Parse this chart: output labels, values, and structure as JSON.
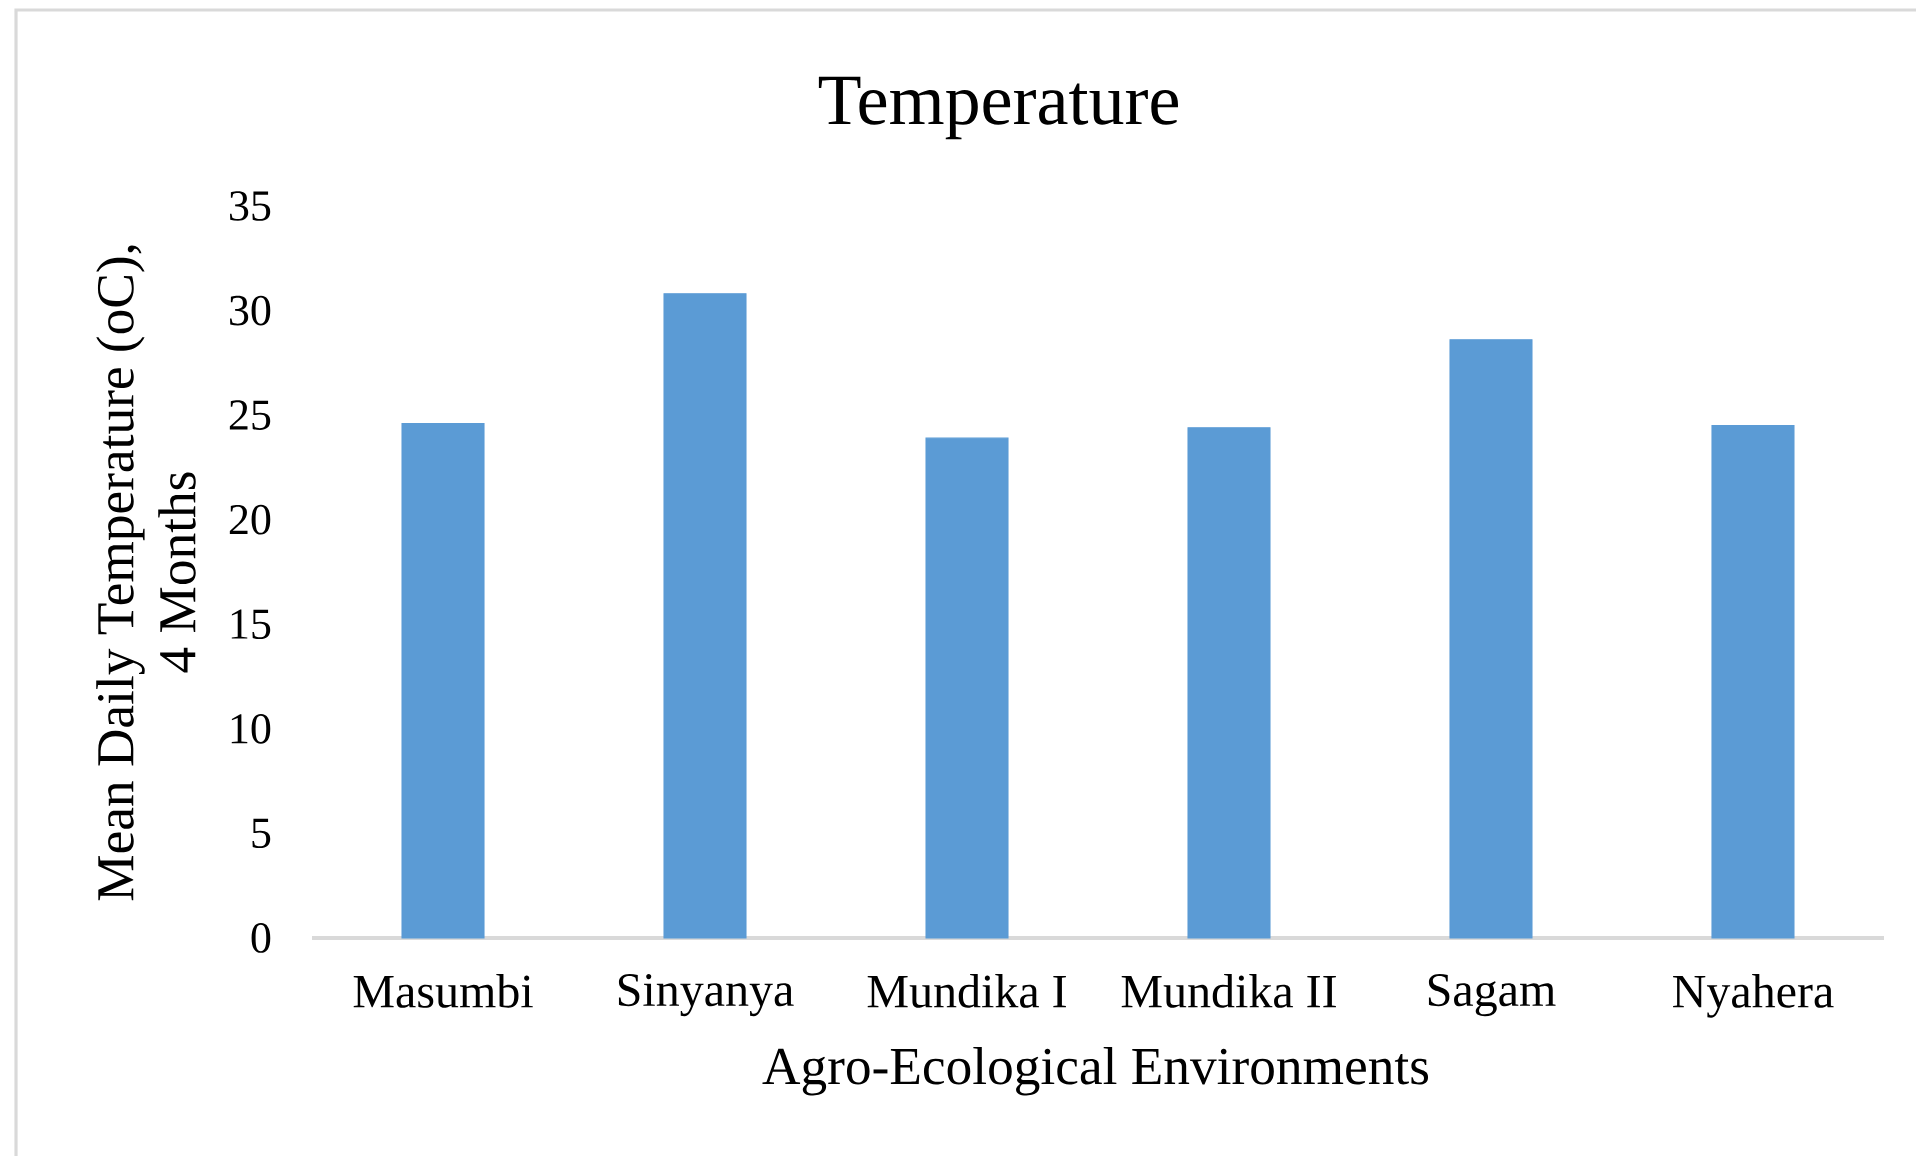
{
  "chart_data": {
    "type": "bar",
    "title": "Temperature",
    "xlabel": "Agro-Ecological Environments",
    "ylabel": "Mean Daily Temperature (oC), 4 Months",
    "categories": [
      "Masumbi",
      "Sinyanya",
      "Mundika I",
      "Mundika II",
      "Sagam",
      "Nyahera"
    ],
    "values": [
      24.6,
      30.8,
      23.9,
      24.4,
      28.6,
      24.5
    ],
    "color": "#5b9bd5",
    "ylim": [
      0,
      35
    ],
    "yticks": [
      0,
      5,
      10,
      15,
      20,
      25,
      30,
      35
    ]
  }
}
